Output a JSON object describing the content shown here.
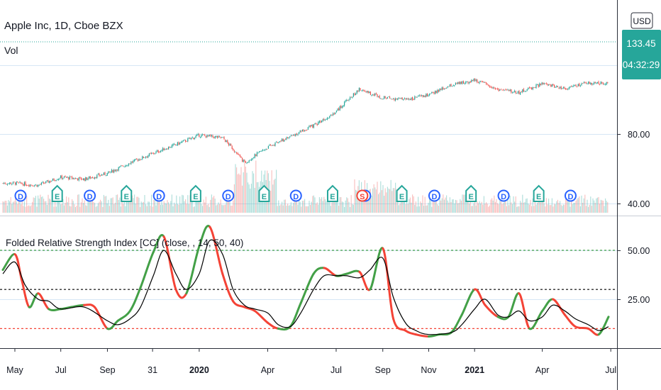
{
  "header": {
    "symbol_title": "Apple Inc, 1D, Cboe BZX",
    "volume_label": "Vol",
    "currency_button": "USD"
  },
  "price_badge": {
    "price": "133.45",
    "countdown": "04:32:29",
    "color": "#26a69a"
  },
  "indicator": {
    "title": "Folded Relative Strength Index [CC] (close, , 14, 50, 40)"
  },
  "colors": {
    "up_candle": "#26a69a",
    "down_candle": "#ef5350",
    "rsi_up": "#43a047",
    "rsi_down": "#f44336",
    "signal": "#000000",
    "earnings_badge": "#26a69a",
    "dividend_badge": "#2962ff",
    "split_badge": "#f44336",
    "grid": "#d6e6f5"
  },
  "chart_data": [
    {
      "type": "candlestick",
      "title": "Apple Inc, 1D, Cboe BZX",
      "price_axis": {
        "ticks": [
          "80.00",
          "40.00"
        ],
        "scale": "log"
      },
      "x_axis_labels": [
        "May",
        "Jul",
        "Sep",
        "31",
        "2020",
        "Apr",
        "Jul",
        "Sep",
        "Nov",
        "2021",
        "Apr",
        "Jul"
      ],
      "close_path": [
        {
          "x": "2019-05",
          "y": 49
        },
        {
          "x": "2019-06",
          "y": 48
        },
        {
          "x": "2019-07",
          "y": 52
        },
        {
          "x": "2019-08",
          "y": 51
        },
        {
          "x": "2019-09",
          "y": 54
        },
        {
          "x": "2019-10",
          "y": 60
        },
        {
          "x": "2019-11",
          "y": 66
        },
        {
          "x": "2019-12",
          "y": 72
        },
        {
          "x": "2020-01",
          "y": 79
        },
        {
          "x": "2020-02",
          "y": 77
        },
        {
          "x": "2020-03",
          "y": 60
        },
        {
          "x": "2020-04",
          "y": 70
        },
        {
          "x": "2020-05",
          "y": 78
        },
        {
          "x": "2020-06",
          "y": 87
        },
        {
          "x": "2020-07",
          "y": 100
        },
        {
          "x": "2020-08",
          "y": 125
        },
        {
          "x": "2020-09",
          "y": 115
        },
        {
          "x": "2020-10",
          "y": 113
        },
        {
          "x": "2020-11",
          "y": 118
        },
        {
          "x": "2020-12",
          "y": 130
        },
        {
          "x": "2021-01",
          "y": 137
        },
        {
          "x": "2021-02",
          "y": 125
        },
        {
          "x": "2021-03",
          "y": 121
        },
        {
          "x": "2021-04",
          "y": 132
        },
        {
          "x": "2021-05",
          "y": 126
        },
        {
          "x": "2021-06",
          "y": 133
        }
      ],
      "volume": "shown",
      "events": [
        {
          "type": "E",
          "date": "2019-04"
        },
        {
          "type": "D",
          "date": "2019-05"
        },
        {
          "type": "E",
          "date": "2019-07"
        },
        {
          "type": "D",
          "date": "2019-08"
        },
        {
          "type": "E",
          "date": "2019-10"
        },
        {
          "type": "D",
          "date": "2019-11"
        },
        {
          "type": "E",
          "date": "2020-01"
        },
        {
          "type": "D",
          "date": "2020-02"
        },
        {
          "type": "E",
          "date": "2020-04"
        },
        {
          "type": "D",
          "date": "2020-05"
        },
        {
          "type": "E",
          "date": "2020-07"
        },
        {
          "type": "D",
          "date": "2020-08"
        },
        {
          "type": "S",
          "date": "2020-08"
        },
        {
          "type": "E",
          "date": "2020-10"
        },
        {
          "type": "D",
          "date": "2020-11"
        },
        {
          "type": "E",
          "date": "2021-01"
        },
        {
          "type": "D",
          "date": "2021-02"
        },
        {
          "type": "E",
          "date": "2021-04"
        },
        {
          "type": "D",
          "date": "2021-05"
        }
      ]
    },
    {
      "type": "line",
      "title": "Folded Relative Strength Index [CC] (close, , 14, 50, 40)",
      "y_axis": {
        "ticks": [
          "50.00",
          "25.00"
        ]
      },
      "levels": [
        {
          "value": 50,
          "color": "#43a047"
        },
        {
          "value": 30,
          "color": "#000000"
        },
        {
          "value": 10,
          "color": "#f44336"
        }
      ],
      "series": [
        {
          "key": "folded_rsi",
          "x": [
            "2019-04-15",
            "2019-05-01",
            "2019-05-10",
            "2019-05-20",
            "2019-06-01",
            "2019-06-15",
            "2019-07-01",
            "2019-07-15",
            "2019-08-01",
            "2019-08-15",
            "2019-09-01",
            "2019-09-15",
            "2019-10-01",
            "2019-10-15",
            "2019-11-01",
            "2019-11-15",
            "2019-12-01",
            "2019-12-15",
            "2020-01-01",
            "2020-01-15",
            "2020-02-01",
            "2020-02-15",
            "2020-03-01",
            "2020-03-15",
            "2020-04-01",
            "2020-04-15",
            "2020-05-01",
            "2020-05-15",
            "2020-06-01",
            "2020-06-15",
            "2020-07-01",
            "2020-07-15",
            "2020-08-01",
            "2020-08-15",
            "2020-09-01",
            "2020-09-15",
            "2020-10-01",
            "2020-10-15",
            "2020-11-01",
            "2020-11-15",
            "2020-12-01",
            "2020-12-15",
            "2021-01-01",
            "2021-01-15",
            "2021-02-01",
            "2021-02-15",
            "2021-03-01",
            "2021-03-15",
            "2021-04-01",
            "2021-04-15",
            "2021-05-01",
            "2021-05-15",
            "2021-06-01",
            "2021-06-15",
            "2021-06-28"
          ],
          "values": [
            40,
            48,
            35,
            21,
            28,
            20,
            20,
            21,
            22,
            21,
            10,
            14,
            19,
            31,
            49,
            57,
            30,
            28,
            52,
            62,
            38,
            24,
            21,
            19,
            13,
            10,
            11,
            23,
            38,
            41,
            37,
            38,
            39,
            30,
            51,
            15,
            9,
            7,
            6,
            7,
            8,
            17,
            30,
            22,
            16,
            16,
            28,
            10,
            19,
            25,
            17,
            11,
            10,
            7,
            16
          ]
        },
        {
          "key": "signal",
          "x": [
            "2019-04-15",
            "2019-05-01",
            "2019-05-15",
            "2019-06-01",
            "2019-06-15",
            "2019-07-01",
            "2019-08-01",
            "2019-09-01",
            "2019-09-15",
            "2019-10-01",
            "2019-10-15",
            "2019-11-01",
            "2019-11-15",
            "2019-12-01",
            "2019-12-15",
            "2020-01-01",
            "2020-01-15",
            "2020-02-01",
            "2020-02-15",
            "2020-03-01",
            "2020-03-15",
            "2020-04-01",
            "2020-04-15",
            "2020-05-01",
            "2020-05-15",
            "2020-06-01",
            "2020-06-15",
            "2020-07-01",
            "2020-07-15",
            "2020-08-01",
            "2020-08-15",
            "2020-09-01",
            "2020-09-15",
            "2020-10-01",
            "2020-10-15",
            "2020-11-01",
            "2020-12-01",
            "2020-12-15",
            "2021-01-01",
            "2021-01-15",
            "2021-02-01",
            "2021-02-15",
            "2021-03-01",
            "2021-03-15",
            "2021-04-01",
            "2021-04-15",
            "2021-05-01",
            "2021-05-15",
            "2021-06-01",
            "2021-06-15",
            "2021-06-28"
          ],
          "values": [
            38,
            44,
            32,
            25,
            24,
            20,
            21,
            14,
            12,
            15,
            21,
            37,
            50,
            38,
            30,
            38,
            55,
            48,
            30,
            22,
            20,
            18,
            12,
            11,
            18,
            30,
            37,
            37,
            37,
            36,
            40,
            46,
            26,
            13,
            9,
            7,
            8,
            12,
            20,
            25,
            17,
            16,
            19,
            14,
            16,
            22,
            19,
            15,
            12,
            9,
            11
          ]
        }
      ]
    }
  ]
}
